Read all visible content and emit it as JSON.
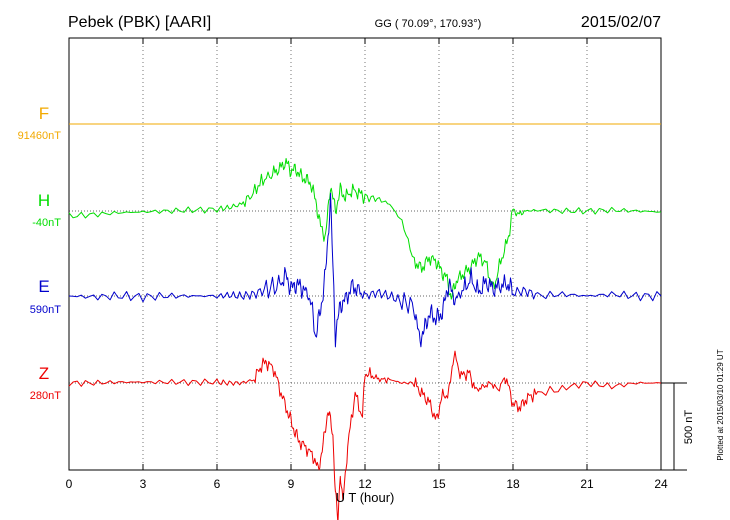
{
  "header": {
    "station": "Pebek (PBK)  [AARI]",
    "coords": "GG ( 70.09°, 170.93°)",
    "date": "2015/02/07"
  },
  "side_note": "Plotted at 2015/03/10 01:29 UT",
  "scale_bar_label": "500 nT",
  "chart_data": {
    "type": "line",
    "xlabel": "U T (hour)",
    "xlim": [
      0,
      24
    ],
    "xticks": [
      "0",
      "3",
      "6",
      "9",
      "12",
      "15",
      "18",
      "21",
      "24"
    ],
    "xtick_values": [
      0,
      3,
      6,
      9,
      12,
      15,
      18,
      21,
      24
    ],
    "grid": true,
    "units": "nT",
    "scale_bar_nT": 500,
    "series": [
      {
        "name": "F",
        "baseline_label": "91460nT",
        "color": "#f2a900",
        "x": [
          0,
          6,
          12,
          18,
          24
        ],
        "y": [
          0,
          0,
          0,
          0,
          0
        ]
      },
      {
        "name": "H",
        "baseline_label": "-40nT",
        "color": "#00dd00",
        "x": [
          0,
          1,
          2,
          3,
          4,
          5,
          6,
          6.5,
          7,
          7.4,
          7.8,
          8.2,
          8.5,
          8.8,
          9.0,
          9.2,
          9.4,
          9.6,
          9.8,
          10.0,
          10.2,
          10.4,
          10.6,
          10.8,
          11.0,
          11.2,
          11.5,
          11.8,
          12.0,
          12.5,
          13.0,
          13.5,
          14.0,
          14.3,
          14.6,
          14.9,
          15.1,
          15.3,
          15.5,
          15.7,
          16.0,
          16.3,
          16.6,
          16.9,
          17.2,
          17.5,
          17.8,
          18.0,
          18.2,
          18.5,
          19,
          20,
          21,
          22,
          23,
          24
        ],
        "y": [
          -30,
          -20,
          -10,
          -5,
          0,
          5,
          10,
          20,
          40,
          90,
          170,
          210,
          240,
          280,
          230,
          240,
          200,
          180,
          160,
          60,
          -90,
          -150,
          150,
          0,
          120,
          80,
          120,
          100,
          80,
          70,
          40,
          -60,
          -290,
          -330,
          -270,
          -290,
          -350,
          -380,
          -500,
          -400,
          -360,
          -320,
          -260,
          -300,
          -450,
          -290,
          -160,
          10,
          -20,
          0,
          5,
          0,
          0,
          5,
          0,
          -5
        ]
      },
      {
        "name": "E",
        "baseline_label": "590nT",
        "color": "#0000cc",
        "x": [
          0,
          1,
          2,
          3,
          4,
          5,
          6,
          6.5,
          7,
          7.5,
          8.0,
          8.5,
          8.8,
          9.0,
          9.2,
          9.4,
          9.6,
          9.8,
          10.0,
          10.2,
          10.4,
          10.6,
          10.8,
          11.0,
          11.2,
          11.5,
          11.8,
          12.0,
          12.5,
          13.0,
          13.5,
          14.0,
          14.2,
          14.4,
          14.6,
          14.8,
          15.0,
          15.2,
          15.4,
          15.6,
          15.8,
          16.0,
          16.3,
          16.6,
          16.9,
          17.2,
          17.5,
          17.8,
          18.0,
          18.5,
          19,
          20,
          21,
          22,
          23,
          24
        ],
        "y": [
          0,
          -5,
          0,
          -5,
          0,
          0,
          0,
          5,
          0,
          10,
          40,
          60,
          120,
          40,
          70,
          50,
          30,
          -30,
          -230,
          -80,
          130,
          560,
          -230,
          -50,
          -20,
          60,
          20,
          0,
          20,
          0,
          -30,
          -60,
          -250,
          -200,
          -100,
          -120,
          -130,
          -60,
          80,
          -30,
          0,
          40,
          100,
          20,
          80,
          40,
          60,
          70,
          20,
          30,
          0,
          10,
          0,
          10,
          0,
          0
        ]
      },
      {
        "name": "Z",
        "baseline_label": "280nT",
        "color": "#ee0000",
        "x": [
          0,
          1,
          2,
          3,
          4,
          5,
          6,
          6.5,
          7,
          7.5,
          7.8,
          8.0,
          8.3,
          8.6,
          8.9,
          9.1,
          9.3,
          9.6,
          9.9,
          10.1,
          10.3,
          10.5,
          10.7,
          10.8,
          10.9,
          11.0,
          11.1,
          11.3,
          11.6,
          11.9,
          12.0,
          12.3,
          12.6,
          13.0,
          13.5,
          14.0,
          14.3,
          14.6,
          14.9,
          15.1,
          15.4,
          15.6,
          15.9,
          16.2,
          16.5,
          16.8,
          17.1,
          17.4,
          17.7,
          18.0,
          18.3,
          18.6,
          19,
          20,
          21,
          22,
          23,
          24
        ],
        "y": [
          0,
          0,
          5,
          5,
          5,
          5,
          5,
          0,
          0,
          20,
          100,
          120,
          80,
          -60,
          -180,
          -260,
          -330,
          -370,
          -420,
          -500,
          -360,
          -150,
          -300,
          -630,
          -800,
          -500,
          -700,
          -360,
          -60,
          -200,
          60,
          40,
          20,
          20,
          0,
          0,
          -60,
          -110,
          -220,
          -80,
          -60,
          170,
          40,
          60,
          -40,
          -20,
          0,
          -40,
          40,
          -120,
          -140,
          -80,
          -60,
          -30,
          0,
          -20,
          0,
          0
        ]
      }
    ]
  }
}
